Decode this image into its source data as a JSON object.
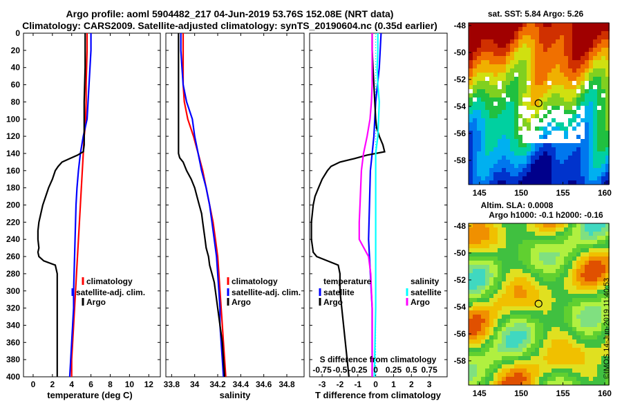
{
  "header": {
    "line1": "Argo profile: aoml 5904482_217 04-Jun-2019 53.76S 152.08E (NRT data)",
    "line2": "Climatology: CARS2009. Satellite-adjusted climatology: synTS_20190604.nc (0.35d earlier)"
  },
  "colors": {
    "climatology": "#ff0000",
    "satellite": "#0000ff",
    "argo": "#000000",
    "sal_clim": "#ff00ff",
    "sal_sat": "#00ffff"
  },
  "chart_data": [
    {
      "type": "line",
      "title": "",
      "xlabel": "temperature (deg C)",
      "ylabel": "",
      "xlim": [
        -1,
        13.2
      ],
      "ylim": [
        400,
        0
      ],
      "xticks": [
        "0",
        "2",
        "4",
        "6",
        "8",
        "10",
        "12"
      ],
      "yticks": [
        "0",
        "20",
        "40",
        "60",
        "80",
        "100",
        "120",
        "140",
        "160",
        "180",
        "200",
        "220",
        "240",
        "260",
        "280",
        "300",
        "320",
        "340",
        "360",
        "380",
        "400"
      ],
      "legend": [
        "climatology",
        "satellite-adj. clim.",
        "Argo"
      ],
      "series": [
        {
          "name": "climatology",
          "y": [
            0,
            20,
            40,
            60,
            80,
            100,
            110,
            120,
            140,
            150,
            160,
            180,
            200,
            220,
            240,
            260,
            280,
            300,
            320,
            340,
            360,
            380,
            400
          ],
          "x": [
            5.6,
            5.6,
            5.55,
            5.5,
            5.5,
            5.45,
            5.4,
            5.3,
            5.2,
            5.15,
            5.1,
            5.0,
            4.9,
            4.8,
            4.7,
            4.6,
            4.5,
            4.4,
            4.3,
            4.2,
            4.1,
            4.0,
            4.0
          ]
        },
        {
          "name": "satellite-adj. clim.",
          "y": [
            0,
            20,
            40,
            60,
            80,
            100,
            110,
            120,
            140,
            150,
            160,
            180,
            200,
            220,
            240,
            260,
            280,
            300,
            320,
            340,
            360,
            380,
            400
          ],
          "x": [
            6.0,
            6.0,
            5.9,
            5.8,
            5.7,
            5.6,
            5.4,
            5.2,
            4.9,
            4.8,
            4.7,
            4.55,
            4.45,
            4.4,
            4.35,
            4.3,
            4.25,
            4.2,
            4.2,
            4.1,
            4.0,
            3.9,
            3.8
          ]
        },
        {
          "name": "Argo",
          "y": [
            0,
            20,
            40,
            60,
            80,
            100,
            120,
            130,
            138,
            142,
            146,
            150,
            155,
            160,
            170,
            180,
            190,
            200,
            210,
            220,
            230,
            240,
            250,
            255,
            260,
            265,
            270,
            280,
            300,
            320,
            340,
            360,
            380,
            400
          ],
          "x": [
            5.4,
            5.4,
            5.4,
            5.35,
            5.3,
            5.3,
            5.3,
            5.3,
            5.2,
            4.6,
            3.8,
            3.0,
            2.6,
            2.3,
            2.0,
            1.6,
            1.3,
            1.0,
            0.8,
            0.6,
            0.5,
            0.5,
            0.6,
            0.5,
            0.6,
            1.1,
            2.3,
            2.5,
            2.5,
            2.5,
            2.5,
            2.5,
            2.5,
            2.5
          ]
        }
      ]
    },
    {
      "type": "line",
      "title": "",
      "xlabel": "salinity",
      "xlim": [
        33.75,
        34.95
      ],
      "ylim": [
        400,
        0
      ],
      "xticks": [
        "33.8",
        "34",
        "34.2",
        "34.4",
        "34.6",
        "34.8"
      ],
      "legend": [
        "climatology",
        "satellite-adj. clim.",
        "Argo"
      ],
      "series": [
        {
          "name": "climatology",
          "y": [
            0,
            20,
            40,
            60,
            80,
            100,
            120,
            140,
            160,
            180,
            200,
            220,
            240,
            260,
            280,
            300,
            320,
            340,
            360,
            380,
            400
          ],
          "x": [
            33.9,
            33.9,
            33.9,
            33.9,
            33.91,
            33.94,
            33.99,
            34.03,
            34.07,
            34.1,
            34.13,
            34.16,
            34.18,
            34.2,
            34.21,
            34.22,
            34.23,
            34.24,
            34.25,
            34.26,
            34.27
          ]
        },
        {
          "name": "satellite-adj. clim.",
          "y": [
            0,
            20,
            40,
            60,
            80,
            100,
            120,
            140,
            160,
            180,
            200,
            220,
            240,
            260,
            280,
            300,
            320,
            340,
            360,
            380,
            400
          ],
          "x": [
            33.88,
            33.88,
            33.89,
            33.9,
            33.93,
            33.98,
            34.0,
            34.03,
            34.06,
            34.1,
            34.13,
            34.15,
            34.17,
            34.19,
            34.2,
            34.21,
            34.22,
            34.22,
            34.23,
            34.24,
            34.25
          ]
        },
        {
          "name": "Argo",
          "y": [
            0,
            20,
            40,
            60,
            80,
            100,
            120,
            140,
            145,
            150,
            160,
            170,
            180,
            190,
            200,
            210,
            220,
            230,
            240,
            250,
            260,
            270,
            280,
            290,
            300,
            320,
            340,
            360,
            380,
            400
          ],
          "x": [
            33.86,
            33.86,
            33.86,
            33.86,
            33.86,
            33.86,
            33.86,
            33.86,
            33.87,
            33.9,
            33.93,
            33.97,
            34.0,
            34.02,
            34.04,
            34.06,
            34.07,
            34.08,
            34.09,
            34.1,
            34.12,
            34.13,
            34.15,
            34.17,
            34.18,
            34.2,
            34.22,
            34.24,
            34.25,
            34.26
          ]
        }
      ]
    },
    {
      "type": "line",
      "title": "",
      "xlabel": "T difference from climatology",
      "x2label": "S difference from climatology",
      "xlim": [
        -3.7,
        4.0
      ],
      "ylim": [
        400,
        0
      ],
      "xticks": [
        "-3",
        "-2",
        "-1",
        "0",
        "1",
        "2",
        "3"
      ],
      "x2ticks": [
        "-0.75",
        "-0.5",
        "-0.25",
        "0",
        "0.25",
        "0.5",
        "0.75"
      ],
      "legend_left_title": "temperature",
      "legend_right_title": "salinity",
      "legend_left": [
        "satellite",
        "Argo"
      ],
      "legend_right": [
        "satellite",
        "Argo"
      ],
      "series": [
        {
          "name": "T satellite",
          "y": [
            0,
            20,
            40,
            60,
            80,
            100,
            120,
            140,
            160,
            200,
            240,
            260,
            280,
            300,
            320,
            360,
            400
          ],
          "x": [
            0.3,
            0.25,
            0.2,
            0.1,
            0.0,
            -0.05,
            -0.1,
            -0.2,
            -0.3,
            -0.35,
            -0.4,
            -0.35,
            -0.3,
            -0.25,
            -0.2,
            -0.2,
            -0.2
          ]
        },
        {
          "name": "T Argo",
          "y": [
            0,
            20,
            40,
            60,
            80,
            100,
            110,
            120,
            130,
            138,
            142,
            146,
            150,
            155,
            160,
            170,
            180,
            190,
            200,
            220,
            240,
            255,
            260,
            270,
            280,
            300,
            320,
            340,
            360,
            380,
            400
          ],
          "x": [
            -0.2,
            -0.2,
            -0.15,
            -0.1,
            -0.05,
            0.0,
            0.05,
            0.2,
            0.4,
            0.5,
            -0.5,
            -1.2,
            -2.0,
            -2.5,
            -2.7,
            -3.0,
            -3.2,
            -3.4,
            -3.5,
            -3.6,
            -3.6,
            -3.5,
            -3.3,
            -2.1,
            -2.0,
            -2.0,
            -1.9,
            -1.8,
            -1.7,
            -1.6,
            -1.5
          ]
        },
        {
          "name": "S satellite",
          "y": [
            0,
            20,
            40,
            60,
            80,
            100,
            120,
            140,
            160,
            200,
            240,
            280,
            320,
            360,
            400
          ],
          "x": [
            0.03,
            0.03,
            0.02,
            0.03,
            0.05,
            0.04,
            0.03,
            0.0,
            0.0,
            0.0,
            0.0,
            0.0,
            0.0,
            -0.01,
            -0.02
          ]
        },
        {
          "name": "S Argo",
          "y": [
            0,
            20,
            40,
            60,
            80,
            100,
            120,
            140,
            160,
            180,
            200,
            220,
            240,
            260,
            280,
            300,
            320,
            340,
            360,
            380,
            400
          ],
          "x": [
            -0.05,
            -0.05,
            -0.05,
            -0.05,
            -0.06,
            -0.08,
            -0.12,
            -0.17,
            -0.2,
            -0.21,
            -0.22,
            -0.23,
            -0.23,
            -0.1,
            -0.07,
            -0.06,
            -0.05,
            -0.05,
            -0.05,
            -0.05,
            -0.05
          ]
        }
      ]
    },
    {
      "type": "heatmap",
      "title": "sat. SST: 5.84  Argo: 5.26",
      "xticks": [
        "145",
        "150",
        "155",
        "160"
      ],
      "yticks": [
        "-48",
        "-50",
        "-52",
        "-54",
        "-56",
        "-58"
      ],
      "xlim": [
        143.7,
        160.5
      ],
      "ylim": [
        -59.8,
        -47.8
      ],
      "marker": {
        "lon": 152.08,
        "lat": -53.76
      }
    },
    {
      "type": "heatmap",
      "title1": "Altim. SLA: 0.0008",
      "title2": "Argo h1000: -0.1  h2000: -0.16",
      "xticks": [
        "145",
        "150",
        "155",
        "160"
      ],
      "yticks": [
        "-48",
        "-50",
        "-52",
        "-54",
        "-56",
        "-58"
      ],
      "xlim": [
        143.7,
        160.5
      ],
      "ylim": [
        -59.8,
        -47.8
      ],
      "marker": {
        "lon": 152.08,
        "lat": -53.76
      }
    }
  ],
  "stamp": "©IMOS 14-Jun-2019 11:40:53"
}
